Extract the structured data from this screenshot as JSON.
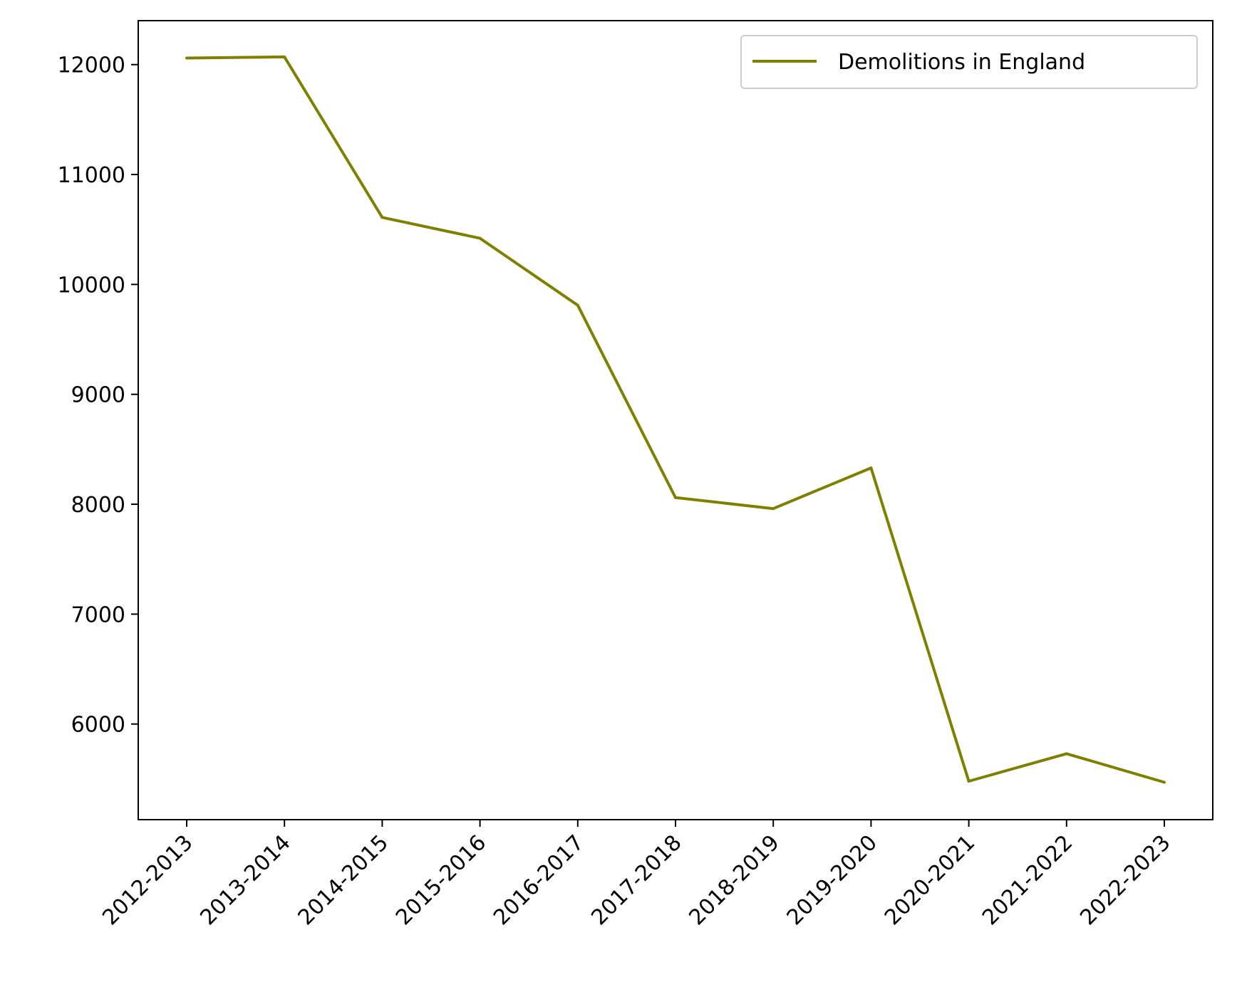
{
  "chart_data": {
    "type": "line",
    "categories": [
      "2012-2013",
      "2013-2014",
      "2014-2015",
      "2015-2016",
      "2016-2017",
      "2017-2018",
      "2018-2019",
      "2019-2020",
      "2020-2021",
      "2021-2022",
      "2022-2023"
    ],
    "series": [
      {
        "name": "Demolitions in England",
        "color": "#808000",
        "values": [
          12060,
          12070,
          10610,
          10420,
          9810,
          8060,
          7960,
          8330,
          5480,
          5730,
          5470
        ]
      }
    ],
    "title": "",
    "xlabel": "",
    "ylabel": "",
    "ylim": [
      5130,
      12400
    ],
    "yticks": [
      6000,
      7000,
      8000,
      9000,
      10000,
      11000,
      12000
    ],
    "grid": false,
    "legend_position": "upper right"
  }
}
